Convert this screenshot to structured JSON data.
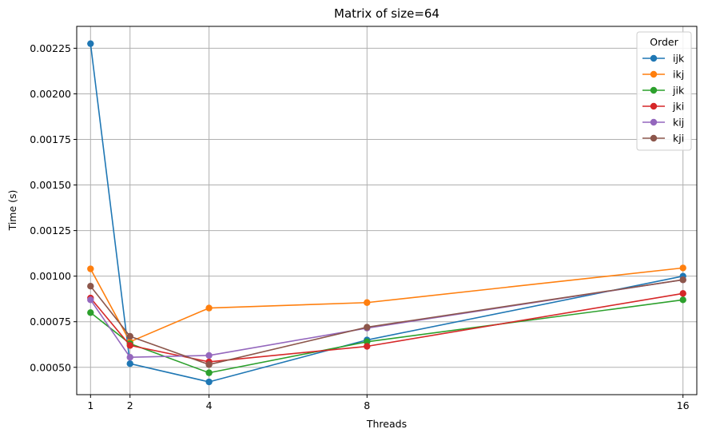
{
  "chart_data": {
    "type": "line",
    "title": "Matrix of size=64",
    "xlabel": "Threads",
    "ylabel": "Time (s)",
    "x": [
      1,
      2,
      4,
      8,
      16
    ],
    "xticks": [
      "1",
      "2",
      "4",
      "8",
      "16"
    ],
    "xlim": [
      0.65,
      16.35
    ],
    "ylim": [
      0.00035,
      0.00237
    ],
    "yticks": [
      0.0005,
      0.00075,
      0.001,
      0.00125,
      0.0015,
      0.00175,
      0.002,
      0.00225
    ],
    "ytick_labels": [
      "0.00050",
      "0.00075",
      "0.00100",
      "0.00125",
      "0.00150",
      "0.00175",
      "0.00200",
      "0.00225"
    ],
    "grid": true,
    "legend_title": "Order",
    "legend_position": "top-right",
    "series": [
      {
        "name": "ijk",
        "color": "#1f77b4",
        "values": [
          0.002275,
          0.00052,
          0.00042,
          0.00065,
          0.001
        ]
      },
      {
        "name": "ikj",
        "color": "#ff7f0e",
        "values": [
          0.00104,
          0.00064,
          0.000825,
          0.000855,
          0.001045
        ]
      },
      {
        "name": "jik",
        "color": "#2ca02c",
        "values": [
          0.0008,
          0.00063,
          0.00047,
          0.00064,
          0.00087
        ]
      },
      {
        "name": "jki",
        "color": "#d62728",
        "values": [
          0.00088,
          0.00062,
          0.00053,
          0.000615,
          0.000905
        ]
      },
      {
        "name": "kij",
        "color": "#9467bd",
        "values": [
          0.00087,
          0.000555,
          0.000565,
          0.000715,
          0.00098
        ]
      },
      {
        "name": "kji",
        "color": "#8c564b",
        "values": [
          0.000945,
          0.00067,
          0.000515,
          0.00072,
          0.00098
        ]
      }
    ]
  }
}
